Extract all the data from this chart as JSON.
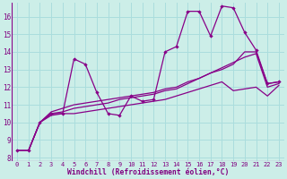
{
  "xlabel": "Windchill (Refroidissement éolien,°C)",
  "background_color": "#cceee8",
  "grid_color": "#aadddd",
  "line_color": "#880088",
  "xlim": [
    -0.5,
    23.5
  ],
  "ylim": [
    7.8,
    16.8
  ],
  "xticks": [
    0,
    1,
    2,
    3,
    4,
    5,
    6,
    7,
    8,
    9,
    10,
    11,
    12,
    13,
    14,
    15,
    16,
    17,
    18,
    19,
    20,
    21,
    22,
    23
  ],
  "yticks": [
    8,
    9,
    10,
    11,
    12,
    13,
    14,
    15,
    16
  ],
  "series1": [
    8.4,
    8.4,
    10.0,
    10.5,
    10.5,
    13.6,
    13.3,
    11.7,
    10.5,
    10.4,
    11.5,
    11.2,
    11.3,
    14.0,
    14.3,
    16.3,
    16.3,
    14.9,
    16.6,
    16.5,
    15.1,
    14.1,
    12.2,
    12.3
  ],
  "series2": [
    8.4,
    8.4,
    10.0,
    10.6,
    10.8,
    11.0,
    11.1,
    11.2,
    11.3,
    11.4,
    11.5,
    11.6,
    11.7,
    11.9,
    12.0,
    12.3,
    12.5,
    12.8,
    13.0,
    13.3,
    14.0,
    14.0,
    12.2,
    12.3
  ],
  "series3": [
    8.4,
    8.4,
    10.0,
    10.5,
    10.6,
    10.8,
    10.9,
    11.0,
    11.1,
    11.3,
    11.4,
    11.5,
    11.6,
    11.8,
    11.9,
    12.2,
    12.5,
    12.8,
    13.1,
    13.4,
    13.7,
    13.9,
    12.0,
    12.2
  ],
  "series4": [
    8.4,
    8.4,
    10.0,
    10.4,
    10.5,
    10.5,
    10.6,
    10.7,
    10.8,
    10.9,
    11.0,
    11.1,
    11.2,
    11.3,
    11.5,
    11.7,
    11.9,
    12.1,
    12.3,
    11.8,
    11.9,
    12.0,
    11.5,
    12.1
  ]
}
